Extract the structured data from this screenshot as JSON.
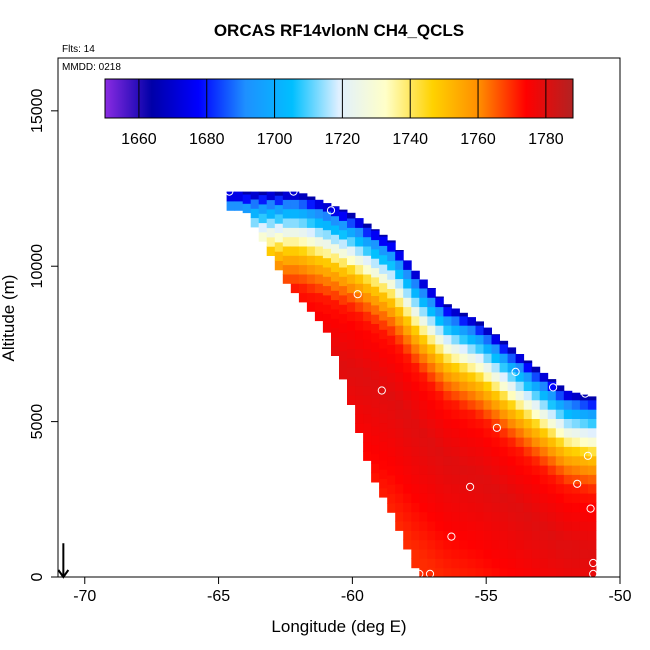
{
  "chart_data": {
    "type": "heatmap",
    "title": "ORCAS RF14vlonN CH4_QCLS",
    "note_flights": "Flts: 14",
    "note_date": "MMDD: 0218",
    "xlabel": "Longitude (deg E)",
    "ylabel": "Altitude (m)",
    "xlim": [
      -71,
      -50
    ],
    "ylim": [
      0,
      16700
    ],
    "x_ticks": [
      -70,
      -65,
      -60,
      -55,
      -50
    ],
    "y_ticks": [
      0,
      5000,
      10000,
      15000
    ],
    "colorbar": {
      "range": [
        1650,
        1788
      ],
      "ticks": [
        1660,
        1680,
        1700,
        1720,
        1740,
        1760,
        1780
      ],
      "colors": [
        "#8a2be2",
        "#0000a8",
        "#0000ff",
        "#1e90ff",
        "#00bfff",
        "#e0f0ff",
        "#ffffc8",
        "#ffd200",
        "#ff8c00",
        "#ff0000",
        "#b22222"
      ]
    },
    "field": {
      "description": "CH4 (ppb) curtain along flight track",
      "top_edge": [
        [
          -64.7,
          12400
        ],
        [
          -62.0,
          12400
        ],
        [
          -60.0,
          11700
        ],
        [
          -58.5,
          10800
        ],
        [
          -57.6,
          9800
        ],
        [
          -56.5,
          8800
        ],
        [
          -55.2,
          8200
        ],
        [
          -53.5,
          7000
        ],
        [
          -52.0,
          6000
        ],
        [
          -51.0,
          5800
        ],
        [
          -51.0,
          0
        ]
      ],
      "bottom_edge": [
        [
          -64.0,
          11800
        ],
        [
          -62.5,
          9500
        ],
        [
          -61.0,
          8000
        ],
        [
          -60.2,
          6000
        ],
        [
          -59.3,
          3300
        ],
        [
          -58.5,
          2000
        ],
        [
          -57.5,
          0
        ]
      ],
      "layers": [
        {
          "offset_m": 0,
          "value": 1664
        },
        {
          "offset_m": 400,
          "value": 1690
        },
        {
          "offset_m": 900,
          "value": 1710
        },
        {
          "offset_m": 1400,
          "value": 1728
        },
        {
          "offset_m": 1900,
          "value": 1748
        },
        {
          "offset_m": 2500,
          "value": 1762
        },
        {
          "offset_m": 3100,
          "value": 1772
        },
        {
          "offset_m": 5000,
          "value": 1780
        },
        {
          "offset_m": 9000,
          "value": 1770
        }
      ]
    },
    "points": [
      {
        "x": -64.6,
        "y": 12400
      },
      {
        "x": -62.2,
        "y": 12400
      },
      {
        "x": -60.8,
        "y": 11800
      },
      {
        "x": -59.8,
        "y": 9100
      },
      {
        "x": -58.9,
        "y": 6000
      },
      {
        "x": -54.6,
        "y": 4800
      },
      {
        "x": -53.9,
        "y": 6600
      },
      {
        "x": -52.5,
        "y": 6100
      },
      {
        "x": -51.3,
        "y": 5900
      },
      {
        "x": -51.2,
        "y": 3900
      },
      {
        "x": -51.6,
        "y": 3000
      },
      {
        "x": -55.6,
        "y": 2900
      },
      {
        "x": -51.1,
        "y": 2200
      },
      {
        "x": -56.3,
        "y": 1300
      },
      {
        "x": -51.0,
        "y": 450
      },
      {
        "x": -51.0,
        "y": 100
      },
      {
        "x": -57.1,
        "y": 100
      },
      {
        "x": -57.5,
        "y": 100
      }
    ],
    "arrow": {
      "x": -70.8,
      "y_top": 700,
      "y_bottom": 0
    }
  }
}
